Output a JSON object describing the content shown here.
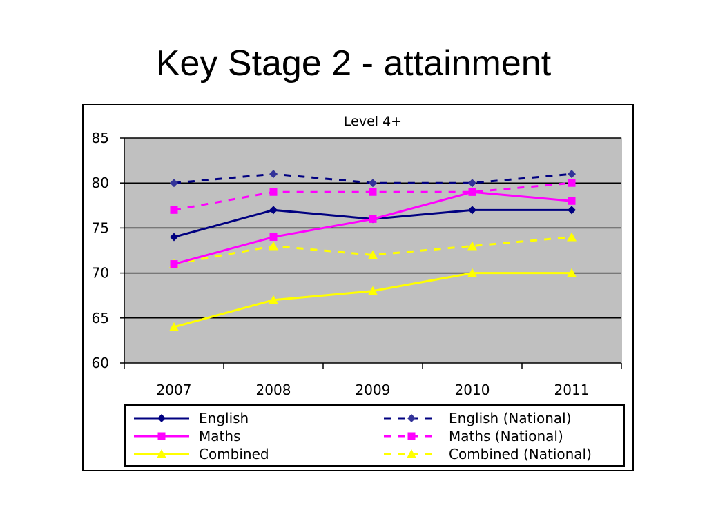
{
  "slide": {
    "title": "Key Stage 2  - attainment"
  },
  "chart_data": {
    "type": "line",
    "title": "Level 4+",
    "categories": [
      "2007",
      "2008",
      "2009",
      "2010",
      "2011"
    ],
    "ylim": [
      60,
      85
    ],
    "yticks": [
      60,
      65,
      70,
      75,
      80,
      85
    ],
    "grid": true,
    "plot_background": "#C0C0C0",
    "legend_position": "bottom",
    "series": [
      {
        "name": "English",
        "values": [
          74,
          77,
          76,
          77,
          77
        ],
        "color": "#000080",
        "dash": false,
        "marker": "diamond"
      },
      {
        "name": "English (National)",
        "values": [
          80,
          81,
          80,
          80,
          81
        ],
        "color": "#000080",
        "marker_color": "#333399",
        "dash": true,
        "marker": "diamond"
      },
      {
        "name": "Maths",
        "values": [
          71,
          74,
          76,
          79,
          78
        ],
        "color": "#FF00FF",
        "dash": false,
        "marker": "square"
      },
      {
        "name": "Maths (National)",
        "values": [
          77,
          79,
          79,
          79,
          80
        ],
        "color": "#FF00FF",
        "dash": true,
        "marker": "square"
      },
      {
        "name": "Combined",
        "values": [
          64,
          67,
          68,
          70,
          70
        ],
        "color": "#FFFF00",
        "dash": false,
        "marker": "triangle"
      },
      {
        "name": "Combined (National)",
        "values": [
          71,
          73,
          72,
          73,
          74
        ],
        "color": "#FFFF00",
        "dash": true,
        "marker": "triangle"
      }
    ]
  }
}
